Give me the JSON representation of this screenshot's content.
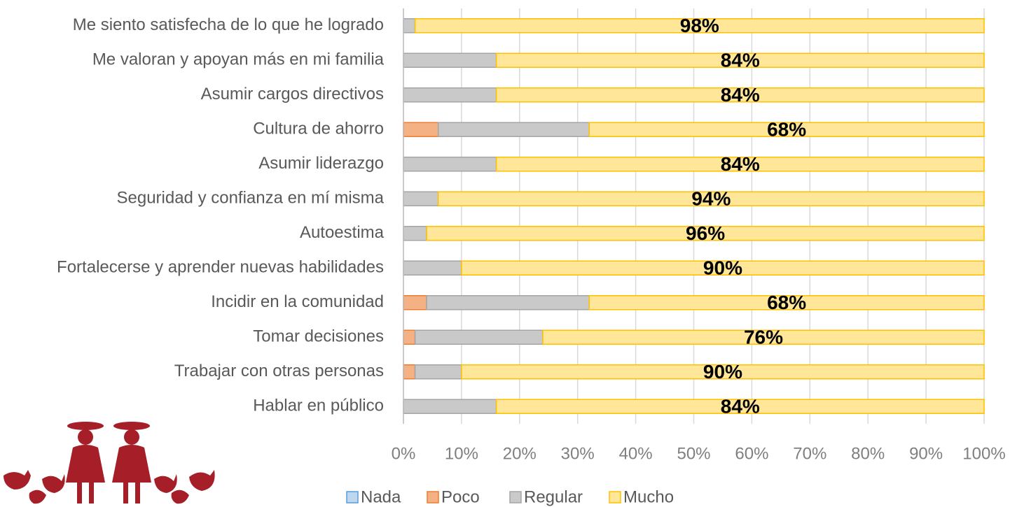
{
  "chart_data": {
    "type": "stacked_barh",
    "categories": [
      "Me siento satisfecha de lo que he logrado",
      "Me valoran y apoyan más en mi familia",
      "Asumir cargos directivos",
      "Cultura de ahorro",
      "Asumir liderazgo",
      "Seguridad y confianza en mí misma",
      "Autoestima",
      "Fortalecerse y aprender nuevas habilidades",
      "Incidir en la comunidad",
      "Tomar decisiones",
      "Trabajar con otras personas",
      "Hablar en público"
    ],
    "series": [
      {
        "name": "Nada",
        "color": "#bdd7ee",
        "edge": "#5b9bd5",
        "values": [
          0,
          0,
          0,
          0,
          0,
          0,
          0,
          0,
          0,
          0,
          0,
          0
        ]
      },
      {
        "name": "Poco",
        "color": "#f4b183",
        "edge": "#ed7d31",
        "values": [
          0,
          0,
          0,
          6,
          0,
          0,
          0,
          0,
          4,
          2,
          2,
          0
        ]
      },
      {
        "name": "Regular",
        "color": "#c9c9c9",
        "edge": "#a5a5a5",
        "values": [
          2,
          16,
          16,
          26,
          16,
          6,
          4,
          10,
          28,
          22,
          8,
          16
        ]
      },
      {
        "name": "Mucho",
        "color": "#ffe699",
        "edge": "#ffc000",
        "values": [
          98,
          84,
          84,
          68,
          84,
          94,
          96,
          90,
          68,
          76,
          90,
          84
        ],
        "value_labels": [
          "98%",
          "84%",
          "84%",
          "68%",
          "84%",
          "94%",
          "96%",
          "90%",
          "68%",
          "76%",
          "90%",
          "84%"
        ]
      }
    ],
    "xlim": [
      0,
      100
    ],
    "xticks": [
      {
        "value": 0,
        "label": "0%"
      },
      {
        "value": 10,
        "label": "10%"
      },
      {
        "value": 20,
        "label": "20%"
      },
      {
        "value": 30,
        "label": "30%"
      },
      {
        "value": 40,
        "label": "40%"
      },
      {
        "value": 50,
        "label": "50%"
      },
      {
        "value": 60,
        "label": "60%"
      },
      {
        "value": 70,
        "label": "70%"
      },
      {
        "value": 80,
        "label": "80%"
      },
      {
        "value": 90,
        "label": "90%"
      },
      {
        "value": 100,
        "label": "100%"
      }
    ],
    "grid": true,
    "legend": "bottom"
  }
}
